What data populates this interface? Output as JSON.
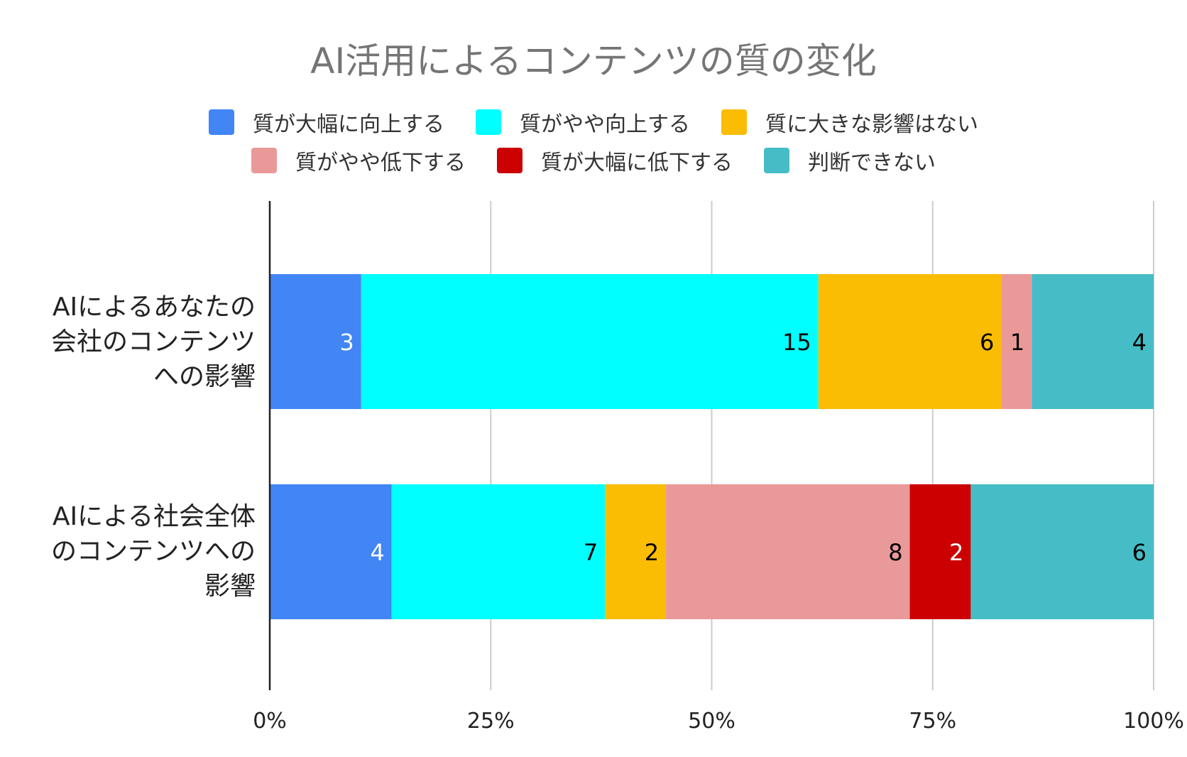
{
  "chart_data": {
    "type": "bar",
    "orientation": "horizontal",
    "stacked": "percent",
    "title": "AI活用によるコンテンツの質の変化",
    "legend_position": "top",
    "categories": [
      [
        "AIによるあなたの",
        "会社のコンテンツ",
        "への影響"
      ],
      [
        "AIによる社会全体",
        "のコンテンツへの",
        "影響"
      ]
    ],
    "series": [
      {
        "name": "質が大幅に向上する",
        "color": "#4285f4",
        "label_color": "#ffffff",
        "values": [
          3,
          4
        ]
      },
      {
        "name": "質がやや向上する",
        "color": "#00ffff",
        "label_color": "#000000",
        "values": [
          15,
          7
        ]
      },
      {
        "name": "質に大きな影響はない",
        "color": "#fbbc04",
        "label_color": "#000000",
        "values": [
          6,
          2
        ]
      },
      {
        "name": "質がやや低下する",
        "color": "#ea9999",
        "label_color": "#000000",
        "values": [
          1,
          8
        ]
      },
      {
        "name": "質が大幅に低下する",
        "color": "#cc0000",
        "label_color": "#ffffff",
        "values": [
          0,
          2
        ]
      },
      {
        "name": "判断できない",
        "color": "#46bdc6",
        "label_color": "#000000",
        "values": [
          4,
          6
        ]
      }
    ],
    "xlim": [
      0,
      100
    ],
    "x_ticks": [
      "0%",
      "25%",
      "50%",
      "75%",
      "100%"
    ],
    "grid": true
  }
}
